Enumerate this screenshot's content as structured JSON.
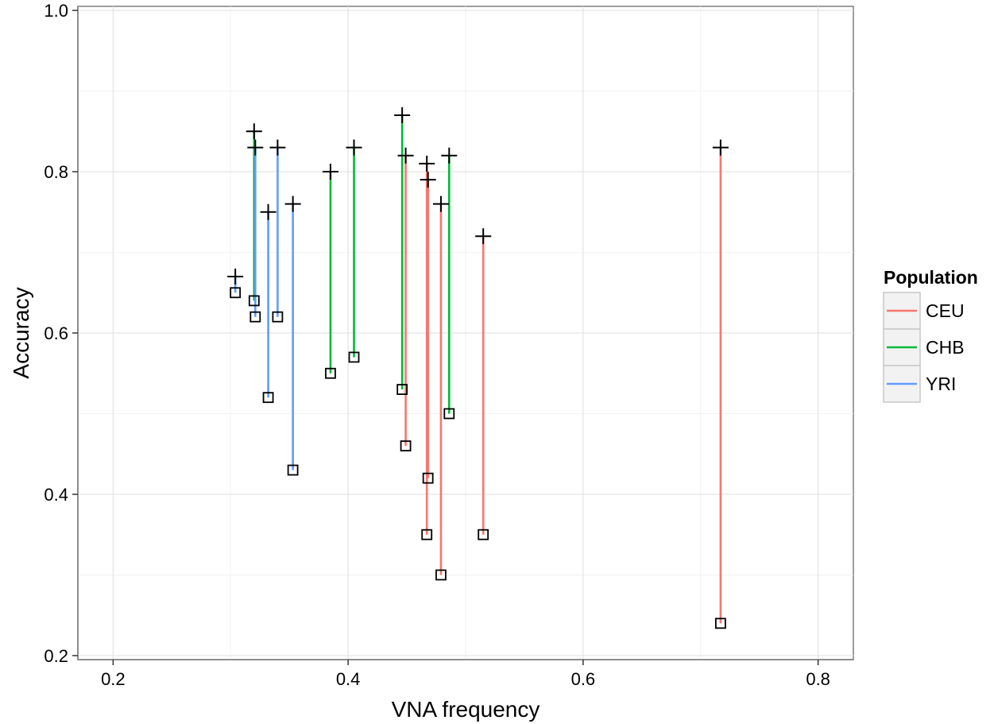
{
  "chart_data": {
    "type": "scatter",
    "xlabel": "VNA frequency",
    "ylabel": "Accuracy",
    "xlim": [
      0.17,
      0.83
    ],
    "ylim": [
      0.195,
      1.005
    ],
    "x_ticks": [
      0.2,
      0.4,
      0.6,
      0.8
    ],
    "x_tick_labels": [
      "0.2",
      "0.4",
      "0.6",
      "0.8"
    ],
    "y_ticks": [
      0.2,
      0.4,
      0.6,
      0.8,
      1.0
    ],
    "y_tick_labels": [
      "0.2",
      "0.4",
      "0.6",
      "0.8",
      "1.0"
    ],
    "grid": true,
    "legend": {
      "title": "Population",
      "placement": "right",
      "entries": [
        {
          "label": "CEU",
          "color": "#F8766D"
        },
        {
          "label": "CHB",
          "color": "#00BA38"
        },
        {
          "label": "YRI",
          "color": "#619CFF"
        }
      ]
    },
    "series": [
      {
        "name": "CEU",
        "color": "#F8766D",
        "segments": [
          {
            "x": 0.449,
            "y_plus": 0.82,
            "y_square": 0.46
          },
          {
            "x": 0.467,
            "y_plus": 0.81,
            "y_square": 0.35
          },
          {
            "x": 0.468,
            "y_plus": 0.79,
            "y_square": 0.42
          },
          {
            "x": 0.479,
            "y_plus": 0.76,
            "y_square": 0.3
          },
          {
            "x": 0.515,
            "y_plus": 0.72,
            "y_square": 0.35
          },
          {
            "x": 0.717,
            "y_plus": 0.83,
            "y_square": 0.24
          }
        ]
      },
      {
        "name": "CHB",
        "color": "#00BA38",
        "segments": [
          {
            "x": 0.32,
            "y_plus": 0.85,
            "y_square": 0.64
          },
          {
            "x": 0.385,
            "y_plus": 0.8,
            "y_square": 0.55
          },
          {
            "x": 0.405,
            "y_plus": 0.83,
            "y_square": 0.57
          },
          {
            "x": 0.446,
            "y_plus": 0.87,
            "y_square": 0.53
          },
          {
            "x": 0.486,
            "y_plus": 0.82,
            "y_square": 0.5
          }
        ]
      },
      {
        "name": "YRI",
        "color": "#619CFF",
        "segments": [
          {
            "x": 0.304,
            "y_plus": 0.67,
            "y_square": 0.65
          },
          {
            "x": 0.321,
            "y_plus": 0.83,
            "y_square": 0.62
          },
          {
            "x": 0.332,
            "y_plus": 0.75,
            "y_square": 0.52
          },
          {
            "x": 0.34,
            "y_plus": 0.83,
            "y_square": 0.62
          },
          {
            "x": 0.353,
            "y_plus": 0.76,
            "y_square": 0.43
          }
        ]
      }
    ]
  }
}
